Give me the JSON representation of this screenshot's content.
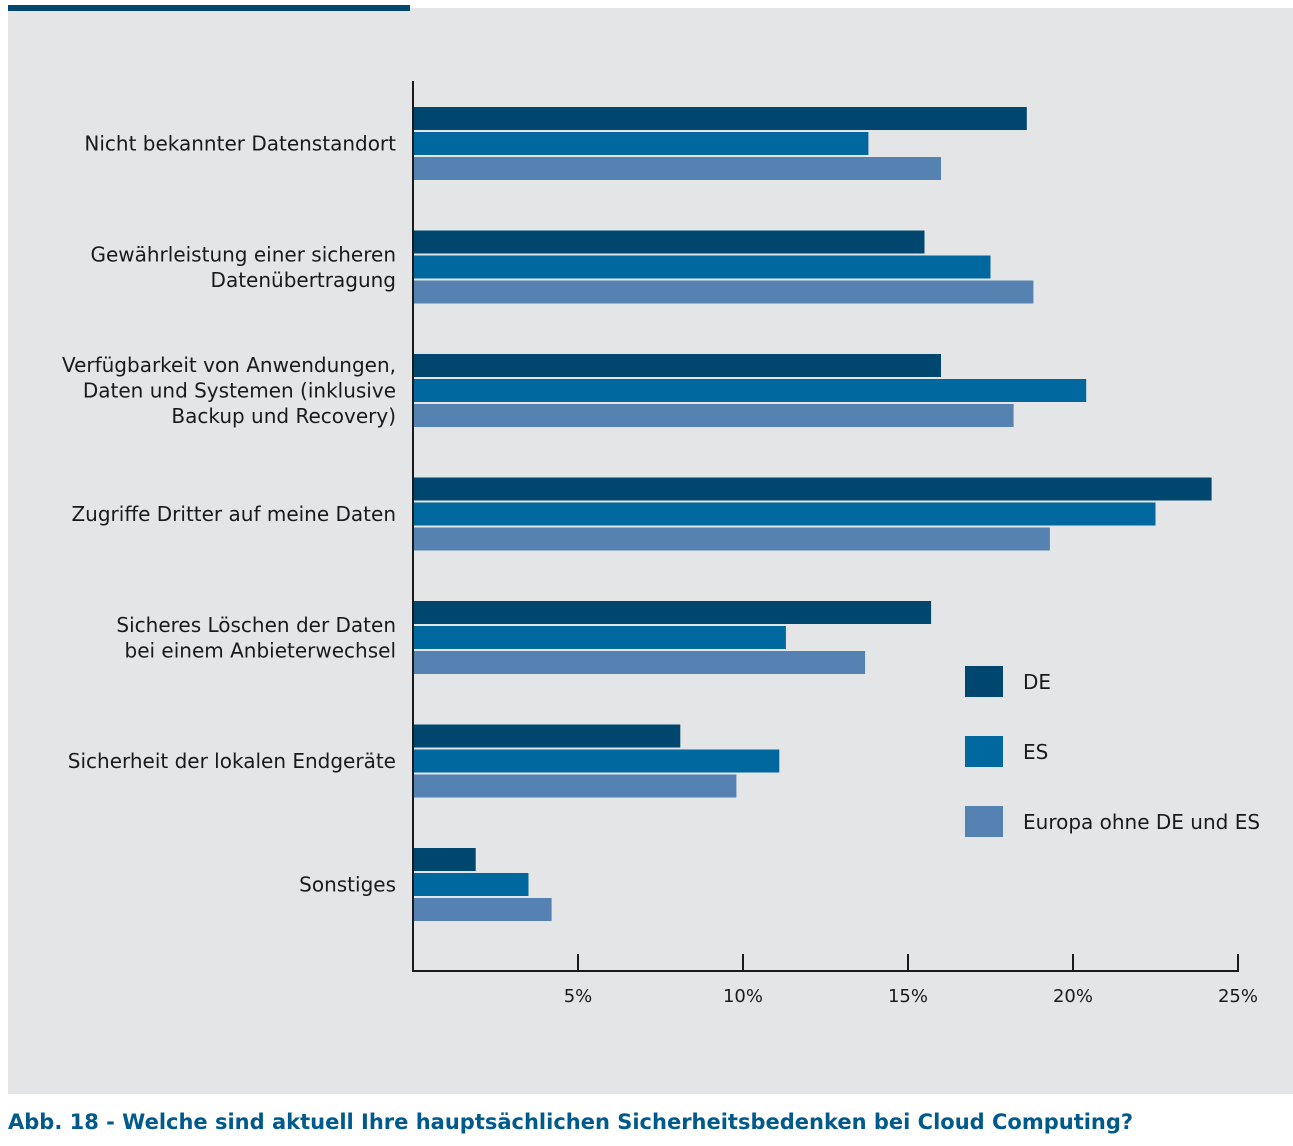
{
  "chart_data": {
    "type": "bar",
    "orientation": "horizontal",
    "categories": [
      [
        "Nicht bekannter Datenstandort"
      ],
      [
        "Gewährleistung einer sicheren",
        "Datenübertragung"
      ],
      [
        "Verfügbarkeit von Anwendungen,",
        "Daten und Systemen (inklusive",
        "Backup und Recovery)"
      ],
      [
        "Zugriffe Dritter auf meine Daten"
      ],
      [
        "Sicheres Löschen der Daten",
        "bei einem Anbieterwechsel"
      ],
      [
        "Sicherheit der lokalen Endgeräte"
      ],
      [
        "Sonstiges"
      ]
    ],
    "series": [
      {
        "name": "DE",
        "color": "#00476f",
        "values": [
          18.6,
          15.5,
          16.0,
          24.2,
          15.7,
          8.1,
          1.9
        ]
      },
      {
        "name": "ES",
        "color": "#00679f",
        "values": [
          13.8,
          17.5,
          20.4,
          22.5,
          11.3,
          11.1,
          3.5
        ]
      },
      {
        "name": "Europa ohne DE und ES",
        "color": "#5582b0",
        "values": [
          16.0,
          18.8,
          18.2,
          19.3,
          13.7,
          9.8,
          4.2
        ]
      }
    ],
    "xticks": [
      5,
      10,
      15,
      20,
      25
    ],
    "xtick_labels": [
      "5%",
      "10%",
      "15%",
      "20%",
      "25%"
    ],
    "xlim": [
      0,
      25
    ],
    "grid": false,
    "legend_position": "right"
  },
  "caption": "Abb. 18 - Welche sind aktuell Ihre hauptsächlichen Sicherheitsbedenken bei Cloud Computing?"
}
